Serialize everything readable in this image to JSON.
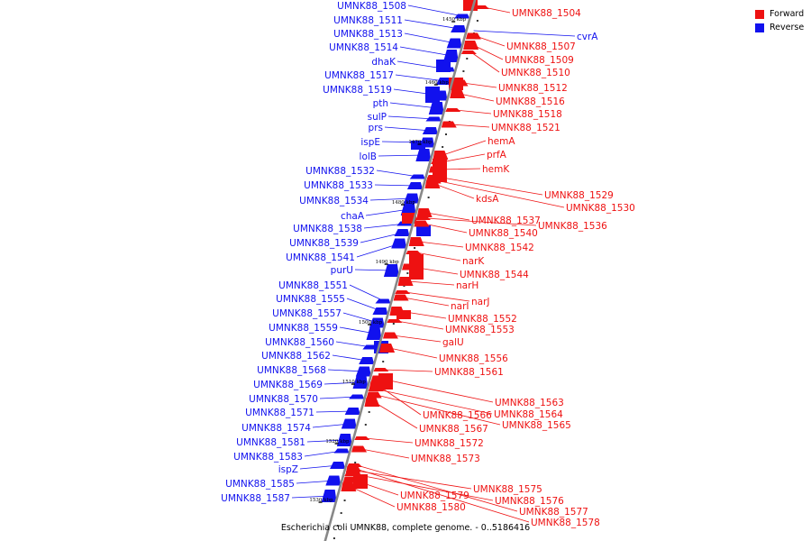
{
  "legend": [
    {
      "label": "Forward",
      "color": "#ee1111"
    },
    {
      "label": "Reverse",
      "color": "#1111ee"
    }
  ],
  "caption": "Escherichia coli UMNK88, complete genome. - 0..5186416",
  "colors": {
    "forward": "#ee1111",
    "reverse": "#1111ee",
    "backbone": "#888888"
  },
  "ticks": [
    "1450 kbp",
    "1460 kbp",
    "1470 kbp",
    "1480 kbp",
    "1490 kbp",
    "1500 kbp",
    "1510 kbp",
    "1520 kbp",
    "1530 kbp"
  ],
  "reverse_labels": [
    "UMNK88_1508",
    "UMNK88_1511",
    "UMNK88_1513",
    "UMNK88_1514",
    "dhaK",
    "UMNK88_1517",
    "UMNK88_1519",
    "pth",
    "sulP",
    "prs",
    "ispE",
    "lolB",
    "UMNK88_1532",
    "UMNK88_1533",
    "UMNK88_1534",
    "chaA",
    "UMNK88_1538",
    "UMNK88_1539",
    "UMNK88_1541",
    "purU",
    "UMNK88_1551",
    "UMNK88_1555",
    "UMNK88_1557",
    "UMNK88_1559",
    "UMNK88_1560",
    "UMNK88_1562",
    "UMNK88_1568",
    "UMNK88_1569",
    "UMNK88_1570",
    "UMNK88_1571",
    "UMNK88_1574",
    "UMNK88_1581",
    "UMNK88_1583",
    "ispZ",
    "UMNK88_1585",
    "UMNK88_1587"
  ],
  "forward_labels": [
    "UMNK88_1504",
    "UMNK88_1507",
    "UMNK88_1509",
    "UMNK88_1510",
    "UMNK88_1512",
    "UMNK88_1516",
    "UMNK88_1518",
    "UMNK88_1521",
    "hemA",
    "prfA",
    "hemK",
    "kdsA",
    "UMNK88_1529",
    "UMNK88_1530",
    "UMNK88_1537",
    "UMNK88_1536",
    "UMNK88_1540",
    "UMNK88_1542",
    "narK",
    "UMNK88_1544",
    "narH",
    "narJ",
    "narI",
    "UMNK88_1552",
    "UMNK88_1553",
    "galU",
    "UMNK88_1556",
    "UMNK88_1561",
    "UMNK88_1563",
    "UMNK88_1566",
    "UMNK88_1564",
    "UMNK88_1565",
    "UMNK88_1567",
    "UMNK88_1572",
    "UMNK88_1573",
    "UMNK88_1575",
    "UMNK88_1576",
    "UMNK88_1579",
    "UMNK88_1580",
    "UMNK88_1577",
    "UMNK88_1578"
  ],
  "extra_reverse_labels": [
    "cvrA"
  ]
}
